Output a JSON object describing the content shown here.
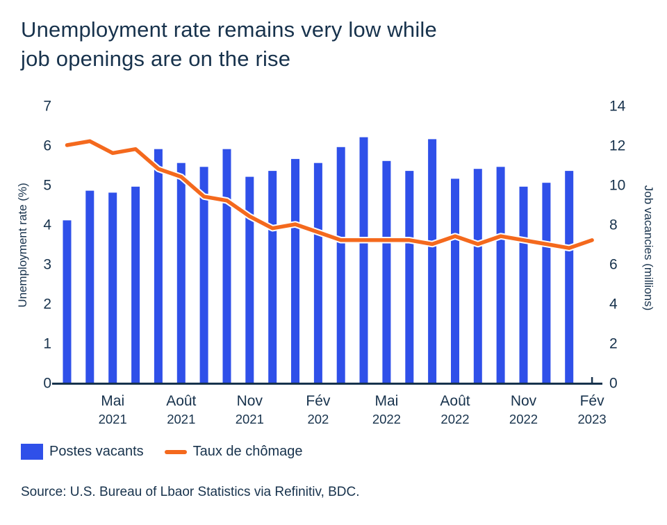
{
  "title": {
    "line1": "Unemployment rate remains very low while",
    "line2": "job openings are on the rise"
  },
  "colors": {
    "bar": "#2F50E9",
    "line": "#F4691D",
    "text": "#17324C",
    "axis": "#17324C",
    "line_halo": "#FFFFFF"
  },
  "chart_data": {
    "type": "bar+line",
    "bar_series": {
      "name": "Postes vacants",
      "axis": "right",
      "unit": "millions",
      "values": [
        8.2,
        9.7,
        9.6,
        9.9,
        11.8,
        11.1,
        10.9,
        11.8,
        10.4,
        10.7,
        11.3,
        11.1,
        11.9,
        12.4,
        11.2,
        10.7,
        12.3,
        10.3,
        10.8,
        10.9,
        9.9,
        10.1,
        10.7
      ]
    },
    "line_series": {
      "name": "Taux de chômage",
      "axis": "left",
      "unit": "%",
      "values": [
        6.0,
        6.1,
        5.8,
        5.9,
        5.4,
        5.2,
        4.7,
        4.6,
        4.2,
        3.9,
        4.0,
        3.8,
        3.6,
        3.6,
        3.6,
        3.6,
        3.5,
        3.7,
        3.5,
        3.7,
        3.6,
        3.5,
        3.4,
        3.6
      ]
    },
    "x_axis": {
      "tick_labels": [
        {
          "month": "Mai",
          "year": "2021"
        },
        {
          "month": "Août",
          "year": "2021"
        },
        {
          "month": "Nov",
          "year": "2021"
        },
        {
          "month": "Fév",
          "year": "202"
        },
        {
          "month": "Mai",
          "year": "2022"
        },
        {
          "month": "Août",
          "year": "2022"
        },
        {
          "month": "Nov",
          "year": "2022"
        },
        {
          "month": "Fév",
          "year": "2023"
        }
      ],
      "tick_positions": [
        2,
        5,
        8,
        11,
        14,
        17,
        20,
        23
      ]
    },
    "left_axis": {
      "label": "Unemployment rate (%)",
      "min": 0,
      "max": 7,
      "tick_step": 1
    },
    "right_axis": {
      "label": "Job vacancies (millions)",
      "min": 0,
      "max": 14,
      "tick_step": 2
    },
    "grid": false,
    "legend_position": "bottom-left"
  },
  "legend": {
    "items": [
      {
        "label": "Postes vacants",
        "swatch": "square"
      },
      {
        "label": "Taux de chômage",
        "swatch": "line"
      }
    ]
  },
  "source": "Source: U.S. Bureau of Lbaor Statistics via Refinitiv, BDC."
}
